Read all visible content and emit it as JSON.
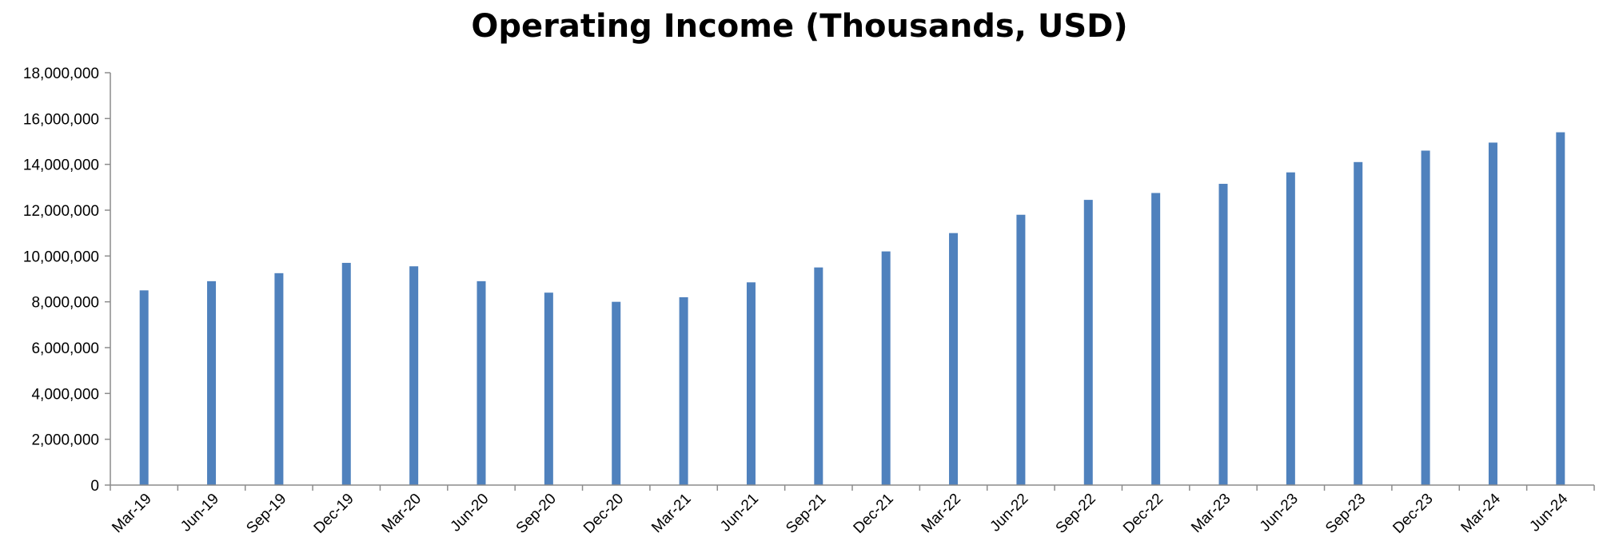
{
  "chart_data": {
    "type": "bar",
    "title": "Operating Income (Thousands, USD)",
    "xlabel": "",
    "ylabel": "",
    "ylim": [
      0,
      18000000
    ],
    "yticks": [
      0,
      2000000,
      4000000,
      6000000,
      8000000,
      10000000,
      12000000,
      14000000,
      16000000,
      18000000
    ],
    "ytick_labels": [
      "0",
      "2,000,000",
      "4,000,000",
      "6,000,000",
      "8,000,000",
      "10,000,000",
      "12,000,000",
      "14,000,000",
      "16,000,000",
      "18,000,000"
    ],
    "grid": false,
    "legend": "none",
    "bar_color": "#4f81bd",
    "categories": [
      "Mar-19",
      "Jun-19",
      "Sep-19",
      "Dec-19",
      "Mar-20",
      "Jun-20",
      "Sep-20",
      "Dec-20",
      "Mar-21",
      "Jun-21",
      "Sep-21",
      "Dec-21",
      "Mar-22",
      "Jun-22",
      "Sep-22",
      "Dec-22",
      "Mar-23",
      "Jun-23",
      "Sep-23",
      "Dec-23",
      "Mar-24",
      "Jun-24"
    ],
    "values": [
      8500000,
      8900000,
      9250000,
      9700000,
      9550000,
      8900000,
      8400000,
      8000000,
      8200000,
      8850000,
      9500000,
      10200000,
      11000000,
      11800000,
      12450000,
      12750000,
      13150000,
      13650000,
      14100000,
      14600000,
      14950000,
      15400000
    ]
  }
}
